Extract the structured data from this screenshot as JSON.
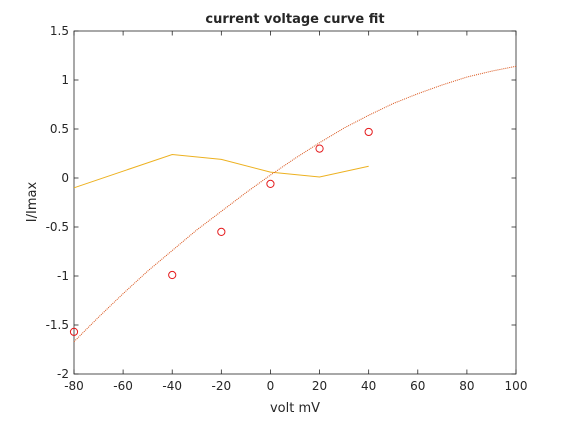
{
  "chart_data": {
    "type": "line",
    "title": "current voltage curve fit",
    "xlabel": "volt mV",
    "ylabel": "I/Imax",
    "xlim": [
      -80,
      100
    ],
    "ylim": [
      -2,
      1.5
    ],
    "xticks": [
      -80,
      -60,
      -40,
      -20,
      0,
      20,
      40,
      60,
      80,
      100
    ],
    "yticks": [
      -2,
      -1.5,
      -1,
      -0.5,
      0,
      0.5,
      1,
      1.5
    ],
    "x_tick_labels": [
      "-80",
      "-60",
      "-40",
      "-20",
      "0",
      "20",
      "40",
      "60",
      "80",
      "100"
    ],
    "y_tick_labels": [
      "-2",
      "-1.5",
      "-1",
      "-0.5",
      "0",
      "0.5",
      "1",
      "1.5"
    ],
    "grid": false,
    "series": [
      {
        "kind": "markers",
        "marker": "circle",
        "color": "#e41a1c",
        "x": [
          -80,
          -40,
          -20,
          0,
          20,
          40
        ],
        "y": [
          -1.57,
          -0.99,
          -0.55,
          -0.06,
          0.3,
          0.47
        ]
      },
      {
        "kind": "line",
        "color": "#edb120",
        "x": [
          -80,
          -40,
          -20,
          0,
          20,
          40
        ],
        "y": [
          -0.1,
          0.24,
          0.19,
          0.06,
          0.01,
          0.12
        ]
      },
      {
        "kind": "dotted-line",
        "color": "#d95319",
        "x": [
          -80,
          -70,
          -60,
          -50,
          -40,
          -30,
          -20,
          -10,
          0,
          10,
          20,
          30,
          40,
          50,
          60,
          70,
          80,
          90,
          100
        ],
        "y": [
          -1.67,
          -1.42,
          -1.18,
          -0.95,
          -0.74,
          -0.53,
          -0.34,
          -0.15,
          0.03,
          0.2,
          0.36,
          0.51,
          0.64,
          0.76,
          0.86,
          0.95,
          1.03,
          1.09,
          1.14
        ]
      }
    ]
  }
}
